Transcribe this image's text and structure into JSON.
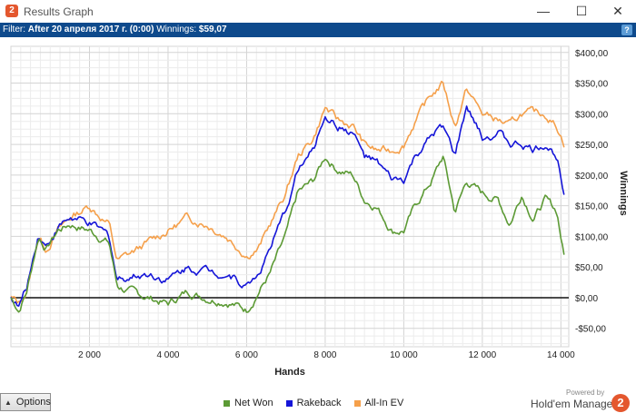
{
  "window": {
    "title": "Results Graph",
    "app_icon_glyph": "2",
    "min_glyph": "—",
    "max_glyph": "☐",
    "close_glyph": "✕"
  },
  "filter": {
    "prefix": "Filter: ",
    "value": "After 20 апреля 2017 г. (0:00)",
    "winnings_label": " Winnings: ",
    "winnings_value": "$59,07",
    "help_glyph": "?"
  },
  "chart_data": {
    "type": "line",
    "xlabel": "Hands",
    "ylabel": "Winnings",
    "xlim": [
      0,
      14200
    ],
    "ylim": [
      -80,
      410
    ],
    "x_ticks": [
      2000,
      4000,
      6000,
      8000,
      10000,
      12000,
      14000
    ],
    "x_tick_labels": [
      "2 000",
      "4 000",
      "6 000",
      "8 000",
      "10 000",
      "12 000",
      "14 000"
    ],
    "y_ticks": [
      -50,
      0,
      50,
      100,
      150,
      200,
      250,
      300,
      350,
      400
    ],
    "y_tick_labels": [
      "-$50,00",
      "$0,00",
      "$50,00",
      "$100,00",
      "$150,00",
      "$200,00",
      "$250,00",
      "$300,00",
      "$350,00",
      "$400,00"
    ],
    "grid": true,
    "legend_position": "bottom",
    "series": [
      {
        "name": "Net Won",
        "color": "#5c9a35",
        "x": [
          0,
          200,
          400,
          700,
          900,
          1200,
          1500,
          2000,
          2500,
          2700,
          3000,
          3500,
          4000,
          4500,
          5000,
          5500,
          6000,
          6300,
          6600,
          7000,
          7300,
          7700,
          8000,
          8300,
          8700,
          9000,
          9300,
          9700,
          10000,
          10300,
          10700,
          11000,
          11300,
          11600,
          12000,
          12400,
          12700,
          13000,
          13300,
          13600,
          13900,
          14100
        ],
        "values": [
          0,
          -20,
          10,
          100,
          80,
          110,
          120,
          110,
          90,
          20,
          10,
          0,
          -10,
          10,
          0,
          -5,
          -20,
          10,
          40,
          100,
          170,
          190,
          230,
          210,
          200,
          160,
          150,
          110,
          110,
          150,
          190,
          230,
          140,
          190,
          170,
          160,
          120,
          170,
          130,
          160,
          140,
          60
        ]
      },
      {
        "name": "Rakeback",
        "color": "#1515d8",
        "x": [
          0,
          200,
          400,
          700,
          900,
          1200,
          1500,
          2000,
          2500,
          2700,
          3000,
          3500,
          4000,
          4500,
          5000,
          5500,
          6000,
          6300,
          6600,
          7000,
          7300,
          7700,
          8000,
          8300,
          8700,
          9000,
          9300,
          9700,
          10000,
          10300,
          10700,
          11000,
          11300,
          11600,
          12000,
          12400,
          12700,
          13000,
          13300,
          13600,
          13900,
          14100
        ],
        "values": [
          0,
          -15,
          15,
          105,
          85,
          115,
          130,
          120,
          100,
          30,
          35,
          40,
          30,
          50,
          45,
          40,
          20,
          40,
          80,
          140,
          210,
          240,
          300,
          280,
          270,
          230,
          220,
          190,
          190,
          230,
          260,
          280,
          230,
          310,
          260,
          270,
          250,
          250,
          240,
          250,
          230,
          170
        ]
      },
      {
        "name": "All-In EV",
        "color": "#f5a04b",
        "x": [
          0,
          200,
          400,
          700,
          900,
          1200,
          1500,
          2000,
          2500,
          2700,
          3000,
          3500,
          4000,
          4500,
          5000,
          5500,
          6000,
          6300,
          6600,
          7000,
          7300,
          7700,
          8000,
          8300,
          8700,
          9000,
          9300,
          9700,
          10000,
          10300,
          10700,
          11000,
          11300,
          11600,
          12000,
          12400,
          12700,
          13000,
          13300,
          13600,
          13900,
          14100
        ],
        "values": [
          0,
          -10,
          10,
          100,
          80,
          110,
          130,
          150,
          120,
          60,
          70,
          90,
          110,
          130,
          120,
          100,
          70,
          80,
          120,
          170,
          230,
          260,
          310,
          290,
          280,
          250,
          240,
          240,
          250,
          290,
          330,
          350,
          280,
          340,
          300,
          290,
          280,
          300,
          300,
          300,
          280,
          250
        ]
      }
    ]
  },
  "options_button": {
    "label": "Options",
    "glyph": "▲"
  },
  "legend": {
    "items": [
      {
        "label": "Net Won",
        "color": "#5c9a35"
      },
      {
        "label": "Rakeback",
        "color": "#1515d8"
      },
      {
        "label": "All-In EV",
        "color": "#f5a04b"
      }
    ]
  },
  "brand": {
    "powered_by": "Powered by",
    "name": "Hold'em Manager",
    "logo_glyph": "2"
  }
}
